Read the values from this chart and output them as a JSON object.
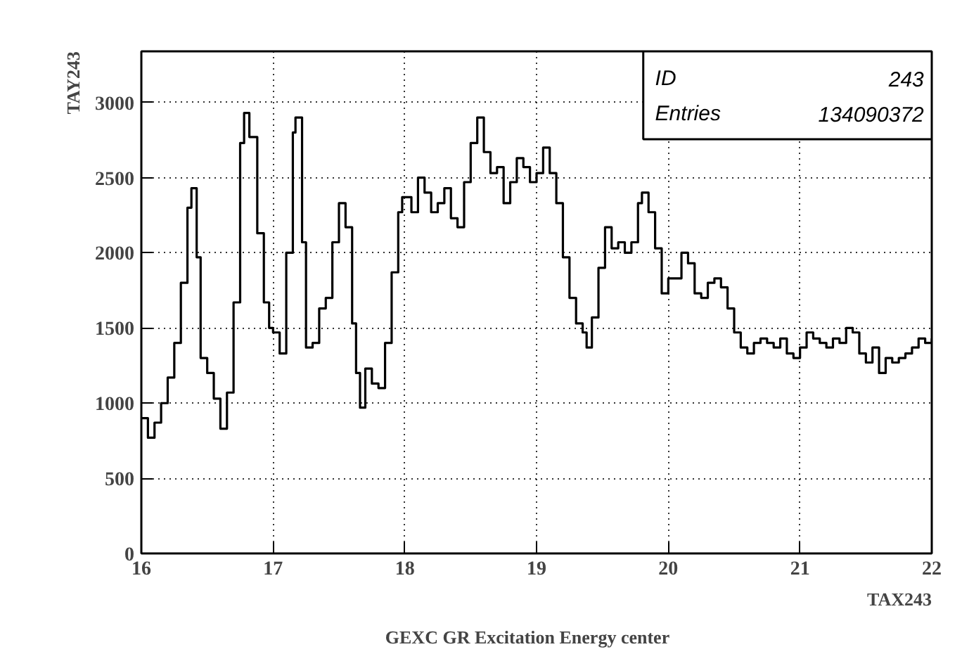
{
  "chart_data": {
    "type": "step",
    "title": "GEXC     GR Excitation Energy center",
    "xlabel": "TAX243",
    "ylabel": "TAY243",
    "annotations": [
      "ID",
      "243",
      "Entries",
      "134090372"
    ],
    "x": [
      16.0,
      16.05,
      16.1,
      16.15,
      16.2,
      16.25,
      16.3,
      16.35,
      16.38,
      16.42,
      16.45,
      16.5,
      16.55,
      16.6,
      16.65,
      16.7,
      16.75,
      16.78,
      16.82,
      16.88,
      16.93,
      16.97,
      17.0,
      17.05,
      17.1,
      17.15,
      17.17,
      17.22,
      17.25,
      17.3,
      17.35,
      17.4,
      17.45,
      17.5,
      17.55,
      17.6,
      17.63,
      17.66,
      17.7,
      17.75,
      17.8,
      17.85,
      17.9,
      17.95,
      17.98,
      18.05,
      18.1,
      18.15,
      18.2,
      18.25,
      18.3,
      18.35,
      18.4,
      18.45,
      18.5,
      18.55,
      18.6,
      18.65,
      18.7,
      18.75,
      18.8,
      18.85,
      18.9,
      18.95,
      19.0,
      19.05,
      19.1,
      19.15,
      19.2,
      19.25,
      19.3,
      19.35,
      19.38,
      19.42,
      19.47,
      19.52,
      19.57,
      19.62,
      19.67,
      19.72,
      19.77,
      19.8,
      19.85,
      19.9,
      19.95,
      20.0,
      20.05,
      20.1,
      20.15,
      20.2,
      20.25,
      20.3,
      20.35,
      20.4,
      20.45,
      20.5,
      20.55,
      20.6,
      20.65,
      20.7,
      20.75,
      20.8,
      20.85,
      20.9,
      20.95,
      21.0,
      21.05,
      21.1,
      21.15,
      21.2,
      21.25,
      21.3,
      21.35,
      21.4,
      21.45,
      21.5,
      21.55,
      21.6,
      21.65,
      21.7,
      21.75,
      21.8,
      21.85,
      21.9,
      21.95,
      22.0
    ],
    "series": [
      {
        "color": "#000000",
        "values": [
          900,
          770,
          870,
          1000,
          1170,
          1400,
          1800,
          2300,
          2430,
          1970,
          1300,
          1200,
          1030,
          830,
          1070,
          1670,
          2730,
          2930,
          2770,
          2130,
          1670,
          1500,
          1470,
          1330,
          2000,
          2800,
          2900,
          2070,
          1370,
          1400,
          1630,
          1700,
          2070,
          2330,
          2170,
          1530,
          1200,
          970,
          1230,
          1130,
          1100,
          1400,
          1870,
          2270,
          2370,
          2270,
          2500,
          2400,
          2270,
          2330,
          2430,
          2230,
          2170,
          2470,
          2730,
          2900,
          2670,
          2530,
          2570,
          2330,
          2470,
          2630,
          2570,
          2470,
          2530,
          2700,
          2530,
          2330,
          1970,
          1700,
          1530,
          1470,
          1370,
          1570,
          1900,
          2170,
          2030,
          2070,
          2000,
          2070,
          2330,
          2400,
          2270,
          2030,
          1730,
          1830,
          1830,
          2000,
          1930,
          1730,
          1700,
          1800,
          1830,
          1770,
          1630,
          1470,
          1370,
          1330,
          1400,
          1430,
          1400,
          1370,
          1430,
          1330,
          1300,
          1370,
          1470,
          1430,
          1400,
          1370,
          1430,
          1400,
          1500,
          1470,
          1330,
          1270,
          1370,
          1200,
          1300,
          1270,
          1300,
          1330,
          1370,
          1430,
          1400,
          1430
        ]
      }
    ],
    "xlim": [
      16,
      22
    ],
    "ylim": [
      0,
      3340
    ],
    "xticks": [
      16,
      17,
      18,
      19,
      20,
      21,
      22
    ],
    "yticks": [
      0,
      500,
      1000,
      1500,
      2000,
      2500,
      3000
    ],
    "grid": true
  }
}
